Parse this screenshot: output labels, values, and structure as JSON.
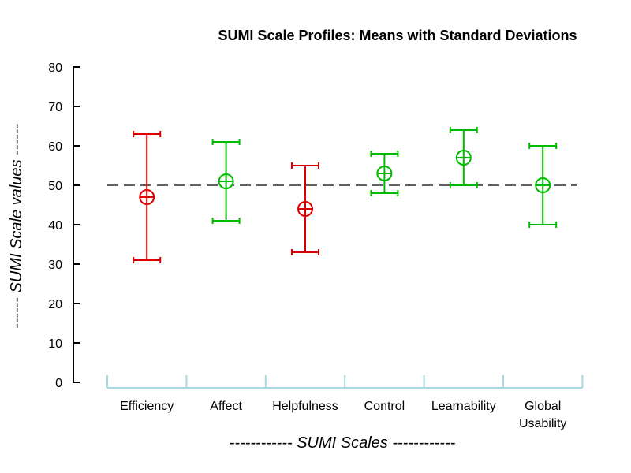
{
  "chart_data": {
    "type": "errorbar",
    "title": "SUMI Scale Profiles: Means with Standard Deviations",
    "xlabel": "------------ SUMI Scales ------------",
    "ylabel": "------ SUMI Scale values ------",
    "ylim": [
      0,
      80
    ],
    "yticks": [
      0,
      10,
      20,
      30,
      40,
      50,
      60,
      70,
      80
    ],
    "reference_line": 50,
    "grid": false,
    "categories": [
      [
        "Efficiency"
      ],
      [
        "Affect"
      ],
      [
        "Helpfulness"
      ],
      [
        "Control"
      ],
      [
        "Learnability"
      ],
      [
        "Global",
        "Usability"
      ]
    ],
    "series": [
      {
        "means": [
          47,
          51,
          44,
          53,
          57,
          50
        ],
        "upper": [
          63,
          61,
          55,
          58,
          64,
          60
        ],
        "lower": [
          31,
          41,
          33,
          48,
          50,
          40
        ],
        "colors": [
          "#dd0000",
          "#00bb00",
          "#dd0000",
          "#00bb00",
          "#00bb00",
          "#00bb00"
        ]
      }
    ],
    "colors": {
      "below_reference": "#dd0000",
      "above_reference": "#00bb00",
      "axis": "#000000",
      "category_axis": "#a8d8e0",
      "reference_line": "#000000"
    }
  }
}
